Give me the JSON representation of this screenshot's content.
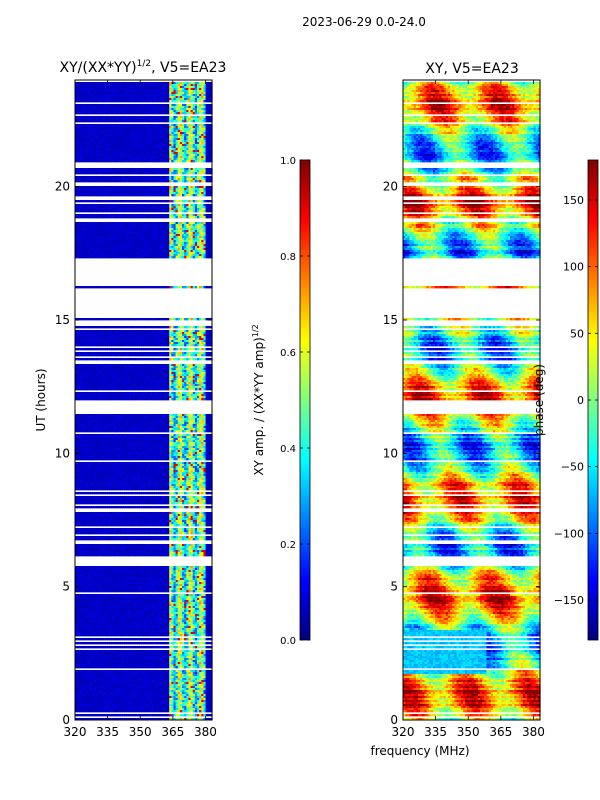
{
  "figure_title": "2023-06-29 0.0-24.0",
  "shared_xlabel": "frequency (MHz)",
  "chart_data": [
    {
      "type": "heatmap",
      "title_main": "XY/(XX*YY)",
      "title_sup": "1/2",
      "title_tail": ", V5=EA23",
      "xlabel": "",
      "ylabel": "UT (hours)",
      "xlim": [
        320,
        383
      ],
      "ylim": [
        0,
        24
      ],
      "xticks": [
        "320",
        "335",
        "350",
        "365",
        "380"
      ],
      "xtick_values": [
        320,
        335,
        350,
        365,
        380
      ],
      "yticks": [
        "0",
        "5",
        "10",
        "15",
        "20"
      ],
      "ytick_values": [
        0,
        5,
        10,
        15,
        20
      ],
      "colorbar_label_main": "XY amp. / (XX*YY amp)",
      "colorbar_label_sup": "1/2",
      "colorbar_range": [
        0.0,
        1.0
      ],
      "colorbar_ticks": [
        "0.0",
        "0.2",
        "0.4",
        "0.6",
        "0.8",
        "1.0"
      ],
      "colorbar_tick_values": [
        0.0,
        0.2,
        0.4,
        0.6,
        0.8,
        1.0
      ],
      "blank_intervals_hours": [
        [
          5.8,
          6.1
        ],
        [
          11.5,
          12.0
        ],
        [
          15.1,
          16.2
        ],
        [
          16.3,
          17.3
        ]
      ],
      "band_mhz": [
        363,
        380
      ],
      "background_level": 0.05
    },
    {
      "type": "heatmap",
      "title": "XY, V5=EA23",
      "xlabel": "",
      "ylabel": "",
      "xlim": [
        320,
        383
      ],
      "ylim": [
        0,
        24
      ],
      "xticks": [
        "320",
        "335",
        "350",
        "365",
        "380"
      ],
      "xtick_values": [
        320,
        335,
        350,
        365,
        380
      ],
      "yticks": [
        "0",
        "5",
        "10",
        "15",
        "20"
      ],
      "ytick_values": [
        0,
        5,
        10,
        15,
        20
      ],
      "colorbar_label": "phase (deg)",
      "colorbar_range": [
        -180,
        180
      ],
      "colorbar_ticks": [
        "−150",
        "−100",
        "−50",
        "0",
        "50",
        "100",
        "150"
      ],
      "colorbar_tick_values": [
        -150,
        -100,
        -50,
        0,
        50,
        100,
        150
      ],
      "blank_intervals_hours": [
        [
          5.8,
          6.1
        ],
        [
          11.5,
          12.0
        ],
        [
          15.1,
          16.2
        ],
        [
          16.3,
          17.3
        ]
      ],
      "low_phase_interval_hours": [
        1.7,
        3.4
      ]
    }
  ],
  "colors": {
    "jet": [
      "#00007f",
      "#0000ff",
      "#007fff",
      "#00ffff",
      "#7fff7f",
      "#ffff00",
      "#ff7f00",
      "#ff0000",
      "#7f0000"
    ]
  }
}
